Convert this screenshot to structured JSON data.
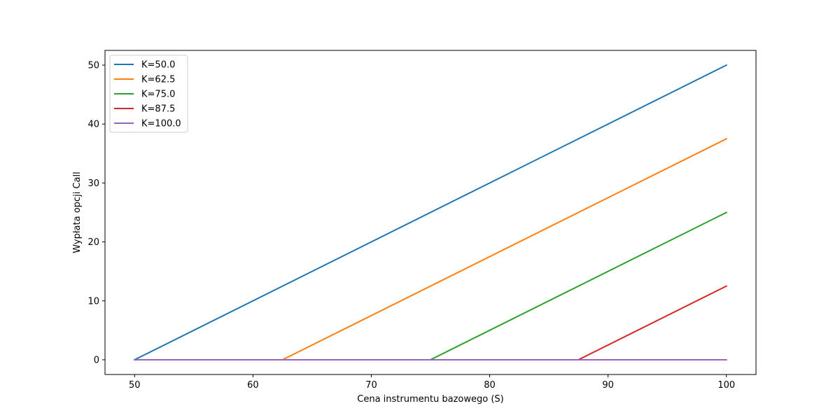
{
  "chart_data": {
    "type": "line",
    "title": "",
    "xlabel": "Cena instrumentu bazowego (S)",
    "ylabel": "Wypłata opcji Call",
    "xlim": [
      47.5,
      102.5
    ],
    "ylim": [
      -2.5,
      52.5
    ],
    "xticks": [
      50,
      60,
      70,
      80,
      90,
      100
    ],
    "yticks": [
      0,
      10,
      20,
      30,
      40,
      50
    ],
    "grid": false,
    "legend_position": "top-left",
    "series": [
      {
        "name": "K=50.0",
        "color": "#1f77b4",
        "x": [
          50,
          100
        ],
        "y": [
          0,
          50
        ]
      },
      {
        "name": "K=62.5",
        "color": "#ff7f0e",
        "x": [
          50,
          62.5,
          100
        ],
        "y": [
          0,
          0,
          37.5
        ]
      },
      {
        "name": "K=75.0",
        "color": "#2ca02c",
        "x": [
          50,
          75,
          100
        ],
        "y": [
          0,
          0,
          25
        ]
      },
      {
        "name": "K=87.5",
        "color": "#d62728",
        "x": [
          50,
          87.5,
          100
        ],
        "y": [
          0,
          0,
          12.5
        ]
      },
      {
        "name": "K=100.0",
        "color": "#9467bd",
        "x": [
          50,
          100
        ],
        "y": [
          0,
          0
        ]
      }
    ]
  }
}
